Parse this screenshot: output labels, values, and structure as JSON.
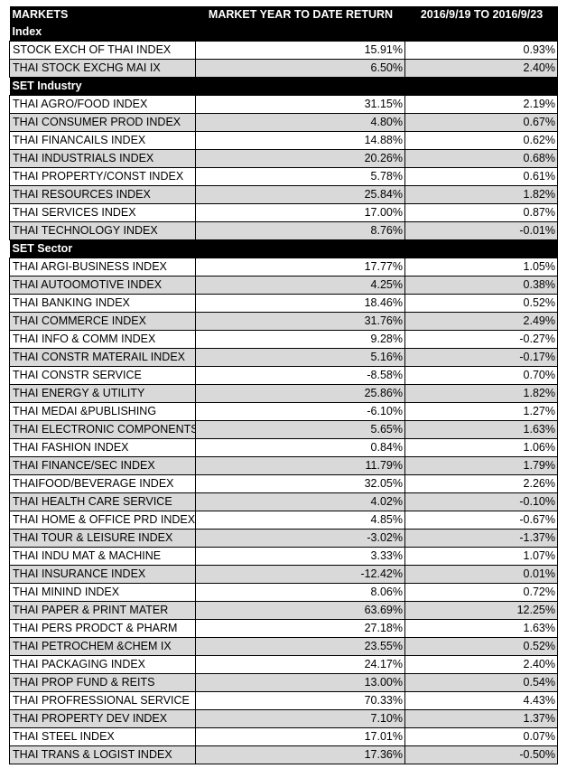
{
  "header": {
    "col1": "MARKETS",
    "col2": "MARKET YEAR TO DATE RETURN",
    "col3": "2016/9/19 TO 2016/9/23"
  },
  "sections": [
    {
      "title": "Index",
      "rows": [
        {
          "name": "STOCK EXCH OF THAI INDEX",
          "ytd": "15.91%",
          "week": "0.93%"
        },
        {
          "name": "THAI STOCK EXCHG MAI IX",
          "ytd": "6.50%",
          "week": "2.40%"
        }
      ]
    },
    {
      "title": "SET Industry",
      "rows": [
        {
          "name": "THAI AGRO/FOOD INDEX",
          "ytd": "31.15%",
          "week": "2.19%"
        },
        {
          "name": "THAI CONSUMER PROD INDEX",
          "ytd": "4.80%",
          "week": "0.67%"
        },
        {
          "name": "THAI FINANCAILS INDEX",
          "ytd": "14.88%",
          "week": "0.62%"
        },
        {
          "name": "THAI INDUSTRIALS INDEX",
          "ytd": "20.26%",
          "week": "0.68%"
        },
        {
          "name": "THAI PROPERTY/CONST INDEX",
          "ytd": "5.78%",
          "week": "0.61%"
        },
        {
          "name": "THAI RESOURCES INDEX",
          "ytd": "25.84%",
          "week": "1.82%"
        },
        {
          "name": "THAI SERVICES INDEX",
          "ytd": "17.00%",
          "week": "0.87%"
        },
        {
          "name": "THAI TECHNOLOGY INDEX",
          "ytd": "8.76%",
          "week": "-0.01%"
        }
      ]
    },
    {
      "title": "SET Sector",
      "rows": [
        {
          "name": "THAI ARGI-BUSINESS INDEX",
          "ytd": "17.77%",
          "week": "1.05%"
        },
        {
          "name": "THAI AUTOOMOTIVE INDEX",
          "ytd": "4.25%",
          "week": "0.38%"
        },
        {
          "name": "THAI BANKING INDEX",
          "ytd": "18.46%",
          "week": "0.52%"
        },
        {
          "name": "THAI COMMERCE INDEX",
          "ytd": "31.76%",
          "week": "2.49%"
        },
        {
          "name": "THAI INFO & COMM INDEX",
          "ytd": "9.28%",
          "week": "-0.27%"
        },
        {
          "name": "THAI CONSTR MATERAIL INDEX",
          "ytd": "5.16%",
          "week": "-0.17%"
        },
        {
          "name": "THAI CONSTR SERVICE",
          "ytd": "-8.58%",
          "week": "0.70%"
        },
        {
          "name": "THAI ENERGY & UTILITY",
          "ytd": "25.86%",
          "week": "1.82%"
        },
        {
          "name": "THAI MEDAI &PUBLISHING",
          "ytd": "-6.10%",
          "week": "1.27%"
        },
        {
          "name": "THAI ELECTRONIC COMPONENTS",
          "ytd": "5.65%",
          "week": "1.63%"
        },
        {
          "name": "THAI FASHION INDEX",
          "ytd": "0.84%",
          "week": "1.06%"
        },
        {
          "name": "THAI FINANCE/SEC INDEX",
          "ytd": "11.79%",
          "week": "1.79%"
        },
        {
          "name": "THAIFOOD/BEVERAGE INDEX",
          "ytd": "32.05%",
          "week": "2.26%"
        },
        {
          "name": "THAI HEALTH CARE SERVICE",
          "ytd": "4.02%",
          "week": "-0.10%"
        },
        {
          "name": "THAI HOME & OFFICE PRD INDEX",
          "ytd": "4.85%",
          "week": "-0.67%"
        },
        {
          "name": "THAI TOUR & LEISURE INDEX",
          "ytd": "-3.02%",
          "week": "-1.37%"
        },
        {
          "name": "THAI INDU MAT & MACHINE",
          "ytd": "3.33%",
          "week": "1.07%"
        },
        {
          "name": "THAI INSURANCE INDEX",
          "ytd": "-12.42%",
          "week": "0.01%"
        },
        {
          "name": "THAI MININD INDEX",
          "ytd": "8.06%",
          "week": "0.72%"
        },
        {
          "name": "THAI PAPER & PRINT MATER",
          "ytd": "63.69%",
          "week": "12.25%"
        },
        {
          "name": "THAI PERS PRODCT & PHARM",
          "ytd": "27.18%",
          "week": "1.63%"
        },
        {
          "name": "THAI PETROCHEM &CHEM IX",
          "ytd": "23.55%",
          "week": "0.52%"
        },
        {
          "name": "THAI PACKAGING INDEX",
          "ytd": "24.17%",
          "week": "2.40%"
        },
        {
          "name": "THAI PROP FUND & REITS",
          "ytd": "13.00%",
          "week": "0.54%"
        },
        {
          "name": "THAI PROFRESSIONAL SERVICE",
          "ytd": "70.33%",
          "week": "4.43%"
        },
        {
          "name": "THAI PROPERTY DEV INDEX",
          "ytd": "7.10%",
          "week": "1.37%"
        },
        {
          "name": "THAI STEEL INDEX",
          "ytd": "17.01%",
          "week": "0.07%"
        },
        {
          "name": "THAI TRANS & LOGIST INDEX",
          "ytd": "17.36%",
          "week": "-0.50%"
        }
      ]
    }
  ],
  "colors": {
    "header_bg": "#000000",
    "header_text": "#ffffff",
    "row_alt_bg": "#d9d9d9",
    "row_bg": "#ffffff"
  }
}
